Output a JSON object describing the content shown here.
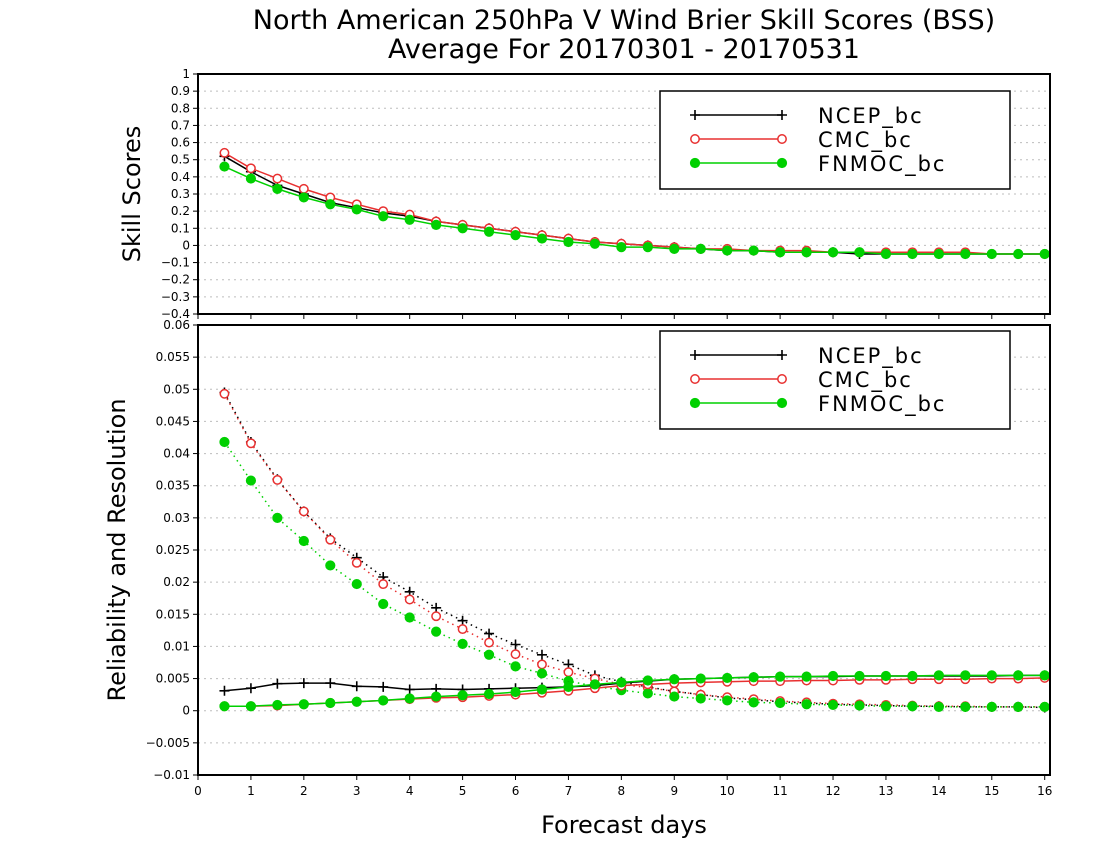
{
  "title": "North American 250hPa V Wind Brier Skill Scores (BSS)",
  "subtitle": "Average For 20170301 - 20170531",
  "xlabel": "Forecast days",
  "colors": {
    "NCEP_bc": "#000000",
    "CMC_bc": "#e83030",
    "FNMOC_bc": "#00d000"
  },
  "chart_data": [
    {
      "type": "line",
      "ylabel": "Skill Scores",
      "xlim": [
        0,
        16.1
      ],
      "ylim": [
        -0.4,
        1
      ],
      "xticks": [
        "0",
        "1",
        "2",
        "3",
        "4",
        "5",
        "6",
        "7",
        "8",
        "9",
        "10",
        "11",
        "12",
        "13",
        "14",
        "15",
        "16"
      ],
      "yticks": [
        "−0.4",
        "−0.3",
        "−0.2",
        "−0.1",
        "0",
        "0.1",
        "0.2",
        "0.3",
        "0.4",
        "0.5",
        "0.6",
        "0.7",
        "0.8",
        "0.9",
        "1"
      ],
      "grid": true,
      "legend": "top-right",
      "x": [
        0.5,
        1,
        1.5,
        2,
        2.5,
        3,
        3.5,
        4,
        4.5,
        5,
        5.5,
        6,
        6.5,
        7,
        7.5,
        8,
        8.5,
        9,
        9.5,
        10,
        10.5,
        11,
        11.5,
        12,
        12.5,
        13,
        13.5,
        14,
        14.5,
        15,
        15.5,
        16
      ],
      "series": [
        {
          "name": "NCEP_bc",
          "marker": "plus",
          "style": "solid",
          "values": [
            0.52,
            0.43,
            0.35,
            0.3,
            0.25,
            0.22,
            0.19,
            0.17,
            0.14,
            0.12,
            0.1,
            0.08,
            0.06,
            0.04,
            0.02,
            0.01,
            0.0,
            -0.01,
            -0.02,
            -0.03,
            -0.03,
            -0.04,
            -0.04,
            -0.04,
            -0.05,
            -0.05,
            -0.05,
            -0.05,
            -0.05,
            -0.05,
            -0.05,
            -0.05
          ]
        },
        {
          "name": "CMC_bc",
          "marker": "circle-open",
          "style": "solid",
          "values": [
            0.54,
            0.45,
            0.39,
            0.33,
            0.28,
            0.24,
            0.2,
            0.18,
            0.14,
            0.12,
            0.1,
            0.08,
            0.06,
            0.04,
            0.02,
            0.01,
            0.0,
            -0.01,
            -0.02,
            -0.02,
            -0.03,
            -0.03,
            -0.03,
            -0.04,
            -0.04,
            -0.04,
            -0.04,
            -0.04,
            -0.04,
            -0.05,
            -0.05,
            -0.05
          ]
        },
        {
          "name": "FNMOC_bc",
          "marker": "circle-filled",
          "style": "solid",
          "values": [
            0.46,
            0.39,
            0.33,
            0.28,
            0.24,
            0.21,
            0.17,
            0.15,
            0.12,
            0.1,
            0.08,
            0.06,
            0.04,
            0.02,
            0.01,
            -0.01,
            -0.01,
            -0.02,
            -0.02,
            -0.03,
            -0.03,
            -0.04,
            -0.04,
            -0.04,
            -0.04,
            -0.05,
            -0.05,
            -0.05,
            -0.05,
            -0.05,
            -0.05,
            -0.05
          ]
        }
      ]
    },
    {
      "type": "line",
      "ylabel": "Reliability and Resolution",
      "xlim": [
        0,
        16.1
      ],
      "ylim": [
        -0.01,
        0.06
      ],
      "xticks": [
        "0",
        "1",
        "2",
        "3",
        "4",
        "5",
        "6",
        "7",
        "8",
        "9",
        "10",
        "11",
        "12",
        "13",
        "14",
        "15",
        "16"
      ],
      "yticks": [
        "−0.01",
        "−0.005",
        "0",
        "0.005",
        "0.01",
        "0.015",
        "0.02",
        "0.025",
        "0.03",
        "0.035",
        "0.04",
        "0.045",
        "0.05",
        "0.055",
        "0.06"
      ],
      "grid": true,
      "legend": "top-right",
      "x": [
        0.5,
        1,
        1.5,
        2,
        2.5,
        3,
        3.5,
        4,
        4.5,
        5,
        5.5,
        6,
        6.5,
        7,
        7.5,
        8,
        8.5,
        9,
        9.5,
        10,
        10.5,
        11,
        11.5,
        12,
        12.5,
        13,
        13.5,
        14,
        14.5,
        15,
        15.5,
        16
      ],
      "series": [
        {
          "name": "NCEP_bc",
          "kind": "reliability",
          "marker": "plus",
          "style": "dotted",
          "values": [
            0.0495,
            0.0418,
            0.036,
            0.031,
            0.0268,
            0.0238,
            0.0208,
            0.0185,
            0.016,
            0.014,
            0.012,
            0.0103,
            0.0087,
            0.0072,
            0.0055,
            0.0045,
            0.0037,
            0.003,
            0.0025,
            0.002,
            0.0017,
            0.0014,
            0.0012,
            0.001,
            0.0009,
            0.0008,
            0.0007,
            0.0007,
            0.0006,
            0.0006,
            0.0006,
            0.0005
          ]
        },
        {
          "name": "CMC_bc",
          "kind": "reliability",
          "marker": "circle-open",
          "style": "dotted",
          "values": [
            0.0493,
            0.0416,
            0.0359,
            0.031,
            0.0266,
            0.023,
            0.0197,
            0.0173,
            0.0147,
            0.0127,
            0.0106,
            0.0088,
            0.0072,
            0.006,
            0.005,
            0.0041,
            0.0036,
            0.003,
            0.0025,
            0.0021,
            0.0018,
            0.0015,
            0.0013,
            0.0011,
            0.001,
            0.0009,
            0.0008,
            0.0007,
            0.0007,
            0.0006,
            0.0006,
            0.0006
          ]
        },
        {
          "name": "FNMOC_bc",
          "kind": "reliability",
          "marker": "circle-filled",
          "style": "dotted",
          "values": [
            0.0418,
            0.0358,
            0.03,
            0.0264,
            0.0226,
            0.0197,
            0.0166,
            0.0145,
            0.0123,
            0.0104,
            0.0087,
            0.0069,
            0.0058,
            0.0046,
            0.0038,
            0.0032,
            0.0027,
            0.0022,
            0.0019,
            0.0016,
            0.0013,
            0.0012,
            0.001,
            0.0009,
            0.0008,
            0.0007,
            0.0007,
            0.0006,
            0.0006,
            0.0006,
            0.0006,
            0.0006
          ]
        },
        {
          "name": "NCEP_bc",
          "kind": "resolution",
          "marker": "plus",
          "style": "solid",
          "values": [
            0.0031,
            0.0035,
            0.0042,
            0.0043,
            0.0043,
            0.0038,
            0.0037,
            0.0033,
            0.0034,
            0.0033,
            0.0034,
            0.0035,
            0.0036,
            0.0037,
            0.0039,
            0.0043,
            0.0046,
            0.0049,
            0.005,
            0.0051,
            0.0052,
            0.0053,
            0.0053,
            0.0053,
            0.0054,
            0.0054,
            0.0054,
            0.0054,
            0.0054,
            0.0054,
            0.0055,
            0.0055
          ]
        },
        {
          "name": "CMC_bc",
          "kind": "resolution",
          "marker": "circle-open",
          "style": "solid",
          "values": [
            0.0007,
            0.0007,
            0.0008,
            0.001,
            0.0012,
            0.0014,
            0.0016,
            0.0018,
            0.002,
            0.0021,
            0.0023,
            0.0025,
            0.0028,
            0.0031,
            0.0035,
            0.0039,
            0.0041,
            0.0043,
            0.0044,
            0.0045,
            0.0046,
            0.0046,
            0.0047,
            0.0047,
            0.0048,
            0.0048,
            0.0049,
            0.0049,
            0.0049,
            0.005,
            0.005,
            0.0051
          ]
        },
        {
          "name": "FNMOC_bc",
          "kind": "resolution",
          "marker": "circle-filled",
          "style": "solid",
          "values": [
            0.0007,
            0.0007,
            0.0009,
            0.001,
            0.0012,
            0.0014,
            0.0016,
            0.0019,
            0.0022,
            0.0024,
            0.0026,
            0.0029,
            0.0033,
            0.0037,
            0.0041,
            0.0044,
            0.0047,
            0.0049,
            0.005,
            0.0051,
            0.0052,
            0.0053,
            0.0053,
            0.0054,
            0.0054,
            0.0054,
            0.0054,
            0.0055,
            0.0055,
            0.0055,
            0.0055,
            0.0055
          ]
        }
      ]
    }
  ]
}
